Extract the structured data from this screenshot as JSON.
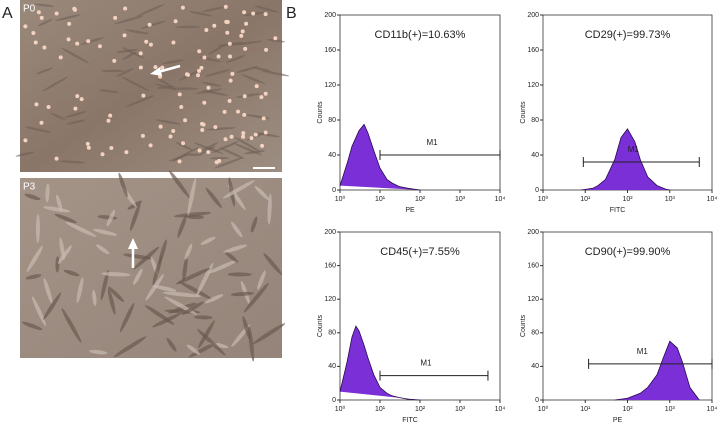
{
  "panel_a": {
    "label": "A",
    "images": [
      {
        "label": "P0"
      },
      {
        "label": "P3"
      }
    ]
  },
  "panel_b": {
    "label": "B",
    "plots": [
      {
        "title": "CD11b(+)=10.63%",
        "xlabel": "PE",
        "ylabel": "Counts",
        "gate": "M1",
        "gate_range": [
          10,
          10000
        ],
        "gate_y": 40,
        "xlim": [
          1,
          10000
        ],
        "ylim": [
          0,
          200
        ],
        "yticks": [
          0,
          40,
          80,
          120,
          160,
          200
        ],
        "xticks": [
          {
            "value": 1,
            "label": "10⁰"
          },
          {
            "value": 10,
            "label": "10¹"
          },
          {
            "value": 100,
            "label": "10²"
          },
          {
            "value": 1000,
            "label": "10³"
          },
          {
            "value": 10000,
            "label": "10⁴"
          }
        ],
        "x": [
          1,
          1.5,
          2,
          3,
          4,
          5,
          7,
          10,
          15,
          20,
          30,
          50,
          100
        ],
        "counts": [
          5,
          30,
          50,
          68,
          75,
          65,
          45,
          25,
          12,
          8,
          4,
          2,
          0
        ]
      },
      {
        "title": "CD29(+)=99.73%",
        "xlabel": "FITC",
        "ylabel": "Counts",
        "gate": "M1",
        "gate_range": [
          9,
          5000
        ],
        "gate_y": 32,
        "xlim": [
          1,
          10000
        ],
        "ylim": [
          0,
          200
        ],
        "yticks": [
          0,
          40,
          80,
          120,
          160,
          200
        ],
        "xticks": [
          {
            "value": 1,
            "label": "10⁰"
          },
          {
            "value": 10,
            "label": "10¹"
          },
          {
            "value": 100,
            "label": "10²"
          },
          {
            "value": 1000,
            "label": "10³"
          },
          {
            "value": 10000,
            "label": "10⁴"
          }
        ],
        "x": [
          8,
          15,
          20,
          30,
          50,
          70,
          100,
          150,
          200,
          300,
          500,
          800,
          1000
        ],
        "counts": [
          0,
          2,
          5,
          12,
          35,
          60,
          70,
          55,
          35,
          15,
          5,
          1,
          0
        ]
      },
      {
        "title": "CD45(+)=7.55%",
        "xlabel": "FITC",
        "ylabel": "Counts",
        "gate": "M1",
        "gate_range": [
          10,
          5000
        ],
        "gate_y": 29,
        "xlim": [
          1,
          10000
        ],
        "ylim": [
          0,
          200
        ],
        "yticks": [
          0,
          40,
          80,
          120,
          160,
          200
        ],
        "xticks": [
          {
            "value": 1,
            "label": "10⁰"
          },
          {
            "value": 10,
            "label": "10¹"
          },
          {
            "value": 100,
            "label": "10²"
          },
          {
            "value": 1000,
            "label": "10³"
          },
          {
            "value": 10000,
            "label": "10⁴"
          }
        ],
        "x": [
          1,
          1.5,
          2,
          2.5,
          3,
          4,
          5,
          7,
          10,
          15,
          20,
          30,
          50,
          100
        ],
        "counts": [
          10,
          45,
          75,
          88,
          82,
          65,
          50,
          30,
          15,
          8,
          5,
          3,
          1,
          0
        ]
      },
      {
        "title": "CD90(+)=99.90%",
        "xlabel": "PE",
        "ylabel": "Counts",
        "gate": "M1",
        "gate_range": [
          12,
          10000
        ],
        "gate_y": 43,
        "xlim": [
          1,
          10000
        ],
        "ylim": [
          0,
          200
        ],
        "yticks": [
          0,
          40,
          80,
          120,
          160,
          200
        ],
        "xticks": [
          {
            "value": 1,
            "label": "10⁰"
          },
          {
            "value": 10,
            "label": "10¹"
          },
          {
            "value": 100,
            "label": "10²"
          },
          {
            "value": 1000,
            "label": "10³"
          },
          {
            "value": 10000,
            "label": "10⁴"
          }
        ],
        "x": [
          50,
          100,
          200,
          300,
          500,
          700,
          1000,
          1500,
          2000,
          3000,
          5000
        ],
        "counts": [
          0,
          2,
          8,
          15,
          30,
          50,
          70,
          62,
          45,
          15,
          0
        ]
      }
    ]
  }
}
